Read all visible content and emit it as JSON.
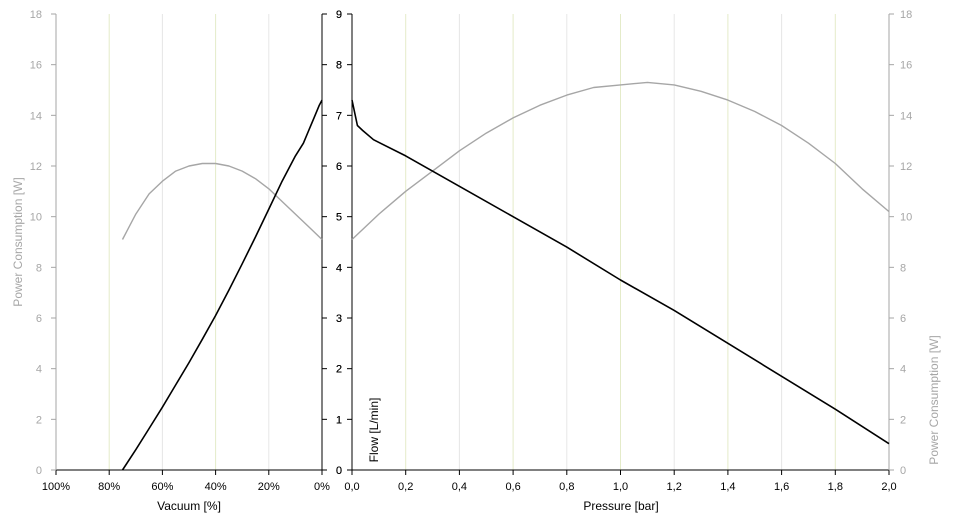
{
  "chart_data": [
    {
      "type": "line",
      "panel": "vacuum",
      "xlabel": "Vacuum [%]",
      "ylabel_left": "Power Consumption [W]",
      "ylabel_right": "Flow [L/min]",
      "x_ticks": [
        "100%",
        "80%",
        "60%",
        "40%",
        "20%",
        "0%"
      ],
      "x_tick_values": [
        100,
        80,
        60,
        40,
        20,
        0
      ],
      "xlim": [
        100,
        0
      ],
      "y_left_ticks": [
        "0",
        "2",
        "4",
        "6",
        "8",
        "10",
        "12",
        "14",
        "16",
        "18"
      ],
      "y_left_lim": [
        0,
        18
      ],
      "y_right_ticks": [
        "0",
        "1",
        "2",
        "3",
        "4",
        "5",
        "6",
        "7",
        "8",
        "9"
      ],
      "y_right_lim": [
        0,
        9
      ],
      "grid": "vertical",
      "series": [
        {
          "axis": "left",
          "color": "#a6a6a6",
          "x": [
            75,
            70,
            65,
            60,
            55,
            50,
            45,
            40,
            35,
            30,
            25,
            20,
            15,
            10,
            5,
            0
          ],
          "y": [
            9.1,
            10.1,
            10.9,
            11.4,
            11.8,
            12.0,
            12.1,
            12.1,
            12.0,
            11.8,
            11.5,
            11.1,
            10.6,
            10.1,
            9.6,
            9.1
          ]
        },
        {
          "axis": "right",
          "color": "#000000",
          "x": [
            75,
            70,
            65,
            60,
            55,
            50,
            45,
            40,
            35,
            30,
            25,
            20,
            15,
            10,
            7,
            5,
            3,
            1,
            0
          ],
          "y": [
            0,
            0.4,
            0.82,
            1.24,
            1.68,
            2.12,
            2.58,
            3.05,
            3.55,
            4.07,
            4.6,
            5.15,
            5.7,
            6.2,
            6.45,
            6.7,
            6.95,
            7.2,
            7.3
          ]
        }
      ]
    },
    {
      "type": "line",
      "panel": "pressure",
      "xlabel": "Pressure [bar]",
      "ylabel_left": "Flow [L/min]",
      "ylabel_right": "Power Consumption [W]",
      "x_ticks": [
        "0,0",
        "0,2",
        "0,4",
        "0,6",
        "0,8",
        "1,0",
        "1,2",
        "1,4",
        "1,6",
        "1,8",
        "2,0"
      ],
      "x_tick_values": [
        0,
        0.2,
        0.4,
        0.6,
        0.8,
        1.0,
        1.2,
        1.4,
        1.6,
        1.8,
        2.0
      ],
      "xlim": [
        0,
        2
      ],
      "y_left_ticks": [
        "0",
        "1",
        "2",
        "3",
        "4",
        "5",
        "6",
        "7",
        "8",
        "9"
      ],
      "y_left_lim": [
        0,
        9
      ],
      "y_right_ticks": [
        "0",
        "2",
        "4",
        "6",
        "8",
        "10",
        "12",
        "14",
        "16",
        "18"
      ],
      "y_right_lim": [
        0,
        18
      ],
      "grid": "vertical",
      "series": [
        {
          "axis": "right",
          "color": "#a6a6a6",
          "x": [
            0,
            0.1,
            0.2,
            0.3,
            0.4,
            0.5,
            0.6,
            0.7,
            0.8,
            0.9,
            1.0,
            1.1,
            1.2,
            1.3,
            1.4,
            1.5,
            1.6,
            1.7,
            1.8,
            1.9,
            2.0
          ],
          "y": [
            9.1,
            10.1,
            11.0,
            11.8,
            12.6,
            13.3,
            13.9,
            14.4,
            14.8,
            15.1,
            15.2,
            15.3,
            15.2,
            14.95,
            14.6,
            14.15,
            13.6,
            12.9,
            12.1,
            11.1,
            10.2
          ]
        },
        {
          "axis": "left",
          "color": "#000000",
          "x": [
            0,
            0.02,
            0.04,
            0.08,
            0.2,
            0.4,
            0.6,
            0.8,
            1.0,
            1.2,
            1.4,
            1.6,
            1.8,
            2.0
          ],
          "y": [
            7.3,
            6.8,
            6.7,
            6.52,
            6.2,
            5.6,
            5.0,
            4.4,
            3.75,
            3.15,
            2.5,
            1.85,
            1.2,
            0.52
          ]
        }
      ]
    }
  ]
}
